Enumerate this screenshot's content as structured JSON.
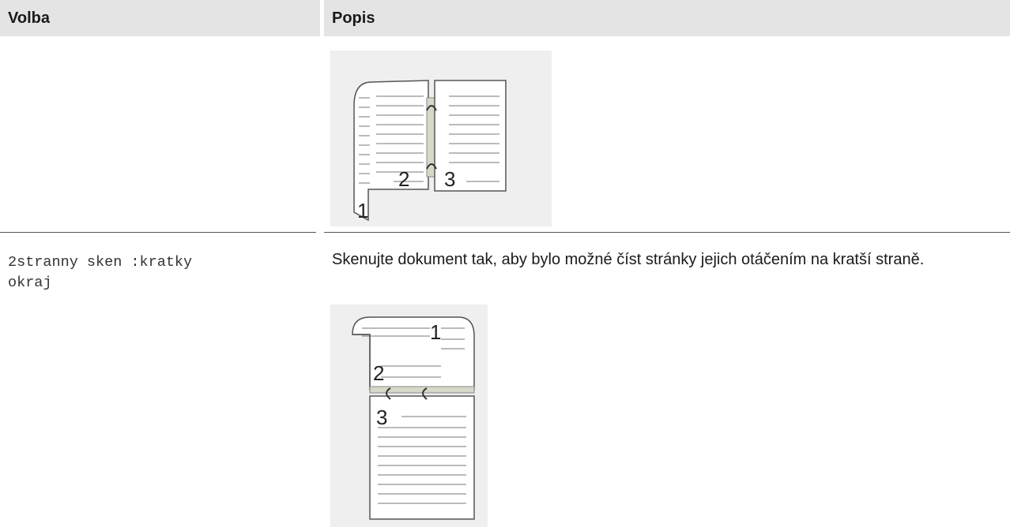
{
  "table": {
    "headers": [
      "Volba",
      "Popis"
    ],
    "rows": [
      {
        "figure_labels": [
          "1",
          "2",
          "3"
        ]
      },
      {
        "option": "2stranny sken :kratky okraj",
        "description": "Skenujte dokument tak, aby bylo možné číst stránky jejich otáčením na kratší straně.",
        "figure_labels": [
          "1",
          "2",
          "3"
        ]
      }
    ]
  }
}
